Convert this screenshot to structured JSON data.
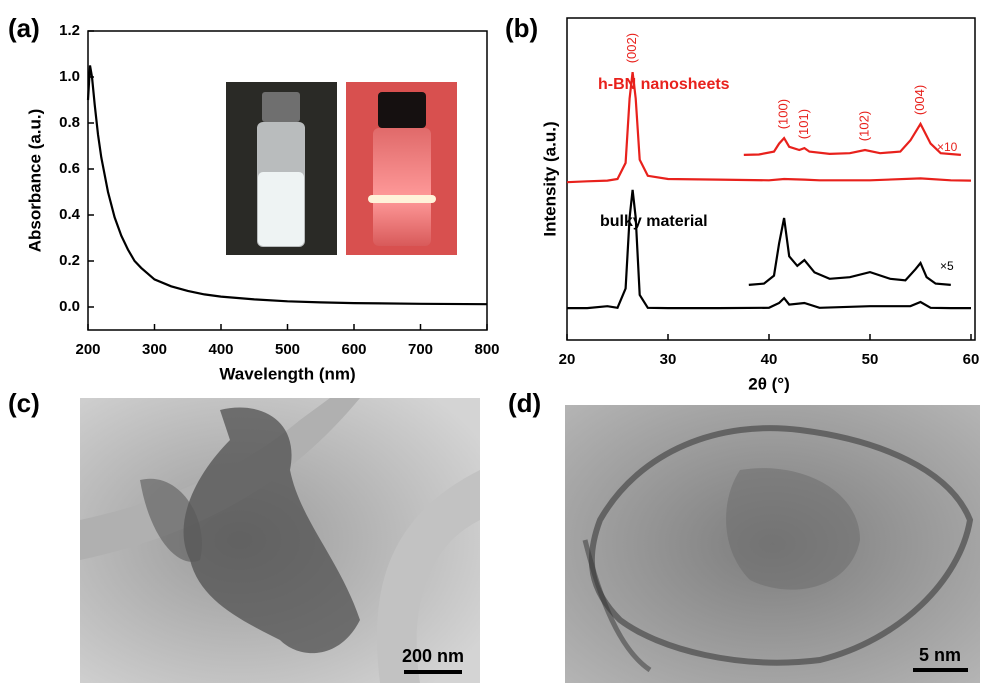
{
  "panels": [
    "(a)",
    "(b)",
    "(c)",
    "(d)"
  ],
  "images": [
    {
      "scale_bar": "200 nm"
    },
    {
      "scale_bar": "5 nm"
    }
  ],
  "chart_data": [
    {
      "type": "line",
      "xlabel": "Wavelength (nm)",
      "ylabel": "Absorbance (a.u.)",
      "color": "#000000",
      "x": [
        200,
        203,
        206,
        210,
        215,
        220,
        230,
        240,
        250,
        260,
        270,
        280,
        300,
        325,
        350,
        375,
        400,
        450,
        500,
        550,
        600,
        700,
        800
      ],
      "values": [
        0.9,
        1.05,
        1.0,
        0.88,
        0.75,
        0.65,
        0.5,
        0.39,
        0.31,
        0.25,
        0.2,
        0.17,
        0.12,
        0.09,
        0.07,
        0.055,
        0.045,
        0.033,
        0.025,
        0.02,
        0.017,
        0.014,
        0.012
      ],
      "xlim": [
        200,
        800
      ],
      "xticks": [
        200,
        300,
        400,
        500,
        600,
        700,
        800
      ],
      "ylim": [
        -0.1,
        1.2
      ],
      "yticks": [
        {
          "value": 0,
          "label": "0.0"
        },
        0.2,
        0.4,
        0.6,
        0.8,
        {
          "value": 1,
          "label": "1.0"
        },
        1.2
      ]
    },
    {
      "type": "line",
      "xlabel": "2θ (°)",
      "ylabel": "Intensity (a.u.)",
      "xlim": [
        20,
        60
      ],
      "xticks": [
        20,
        30,
        40,
        50,
        60
      ],
      "ylim": [
        0,
        10
      ],
      "yticks": [],
      "series": [
        {
          "name": "h-BN nanosheets",
          "color": "#e8211c",
          "x": [
            20,
            22,
            24,
            25,
            25.8,
            26.2,
            26.5,
            26.8,
            27.2,
            28,
            30,
            35,
            40,
            41.5,
            43.5,
            45,
            50,
            55,
            58,
            60
          ],
          "values": [
            4.9,
            4.93,
            4.95,
            5.0,
            5.5,
            7.5,
            8.32,
            7.5,
            5.6,
            5.1,
            5.0,
            4.98,
            4.96,
            5.0,
            4.98,
            4.96,
            4.96,
            5.02,
            4.96,
            4.95
          ]
        },
        {
          "name": "bulky material",
          "color": "#000000",
          "x": [
            20,
            22,
            24,
            25,
            25.8,
            26.2,
            26.5,
            26.8,
            27.2,
            28,
            30,
            35,
            40,
            41,
            41.5,
            42,
            43.5,
            45,
            50,
            54,
            55,
            56,
            58,
            60
          ],
          "values": [
            0.99,
            0.99,
            1.05,
            1.0,
            1.6,
            3.8,
            4.66,
            3.8,
            1.4,
            1.0,
            0.99,
            0.99,
            1.0,
            1.15,
            1.3,
            1.1,
            1.15,
            1.0,
            1.05,
            1.05,
            1.18,
            1.0,
            0.99,
            0.99
          ]
        },
        {
          "name": "×10",
          "color": "#e8211c",
          "x": [
            37.5,
            39,
            40.5,
            41,
            41.5,
            42,
            43,
            43.5,
            44,
            46,
            48,
            49.5,
            51,
            53,
            54,
            55,
            56,
            57,
            59
          ],
          "values": [
            5.75,
            5.76,
            5.85,
            6.1,
            6.27,
            6.0,
            5.9,
            5.96,
            5.85,
            5.78,
            5.8,
            5.9,
            5.8,
            5.85,
            6.2,
            6.71,
            6.1,
            5.8,
            5.75
          ]
        },
        {
          "name": "×5",
          "color": "#000000",
          "x": [
            38,
            39.5,
            40.5,
            41,
            41.5,
            42,
            42.8,
            43.5,
            44.5,
            46,
            48,
            50,
            52,
            53.5,
            54.5,
            55,
            55.6,
            56.5,
            58
          ],
          "values": [
            1.71,
            1.75,
            2.0,
            3.0,
            3.79,
            2.6,
            2.3,
            2.48,
            2.1,
            1.9,
            1.95,
            2.11,
            1.9,
            1.85,
            2.2,
            2.39,
            1.95,
            1.75,
            1.71
          ]
        }
      ],
      "annotations": [
        {
          "text": "(002)",
          "x": 26.5
        },
        {
          "text": "(100)",
          "x": 41.5
        },
        {
          "text": "(101)",
          "x": 43.5
        },
        {
          "text": "(102)",
          "x": 49.5
        },
        {
          "text": "(004)",
          "x": 55
        }
      ]
    }
  ]
}
